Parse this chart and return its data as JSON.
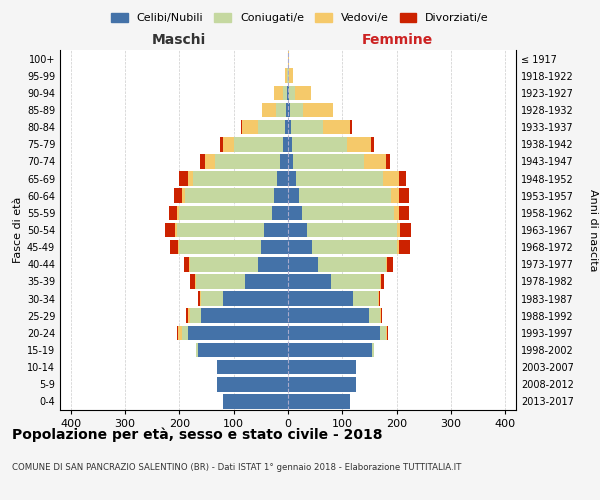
{
  "age_groups": [
    "0-4",
    "5-9",
    "10-14",
    "15-19",
    "20-24",
    "25-29",
    "30-34",
    "35-39",
    "40-44",
    "45-49",
    "50-54",
    "55-59",
    "60-64",
    "65-69",
    "70-74",
    "75-79",
    "80-84",
    "85-89",
    "90-94",
    "95-99",
    "100+"
  ],
  "birth_years": [
    "2013-2017",
    "2008-2012",
    "2003-2007",
    "1998-2002",
    "1993-1997",
    "1988-1992",
    "1983-1987",
    "1978-1982",
    "1973-1977",
    "1968-1972",
    "1963-1967",
    "1958-1962",
    "1953-1957",
    "1948-1952",
    "1943-1947",
    "1938-1942",
    "1933-1937",
    "1928-1932",
    "1923-1927",
    "1918-1922",
    "≤ 1917"
  ],
  "colors": {
    "celibe": "#4472a8",
    "coniugato": "#c5d8a0",
    "vedovo": "#f5c96a",
    "divorziato": "#cc2200"
  },
  "maschi": {
    "celibe": [
      120,
      130,
      130,
      165,
      185,
      160,
      120,
      80,
      55,
      50,
      45,
      30,
      25,
      20,
      15,
      10,
      5,
      3,
      2,
      0,
      0
    ],
    "coniugato": [
      0,
      0,
      0,
      5,
      10,
      20,
      40,
      90,
      125,
      150,
      160,
      170,
      165,
      155,
      120,
      90,
      50,
      20,
      8,
      2,
      0
    ],
    "vedovo": [
      0,
      0,
      0,
      0,
      8,
      5,
      2,
      2,
      2,
      2,
      3,
      4,
      5,
      10,
      18,
      20,
      30,
      25,
      15,
      3,
      0
    ],
    "divorziato": [
      0,
      0,
      0,
      0,
      1,
      2,
      3,
      8,
      10,
      15,
      18,
      15,
      15,
      15,
      10,
      5,
      1,
      0,
      0,
      0,
      0
    ]
  },
  "femmine": {
    "nubile": [
      115,
      125,
      125,
      155,
      170,
      150,
      120,
      80,
      55,
      45,
      35,
      25,
      20,
      15,
      10,
      8,
      5,
      3,
      2,
      0,
      0
    ],
    "coniugata": [
      0,
      0,
      0,
      3,
      10,
      20,
      45,
      90,
      125,
      155,
      165,
      170,
      170,
      160,
      130,
      100,
      60,
      25,
      10,
      2,
      0
    ],
    "vedova": [
      0,
      0,
      0,
      0,
      3,
      2,
      2,
      2,
      3,
      4,
      6,
      10,
      15,
      30,
      40,
      45,
      50,
      55,
      30,
      8,
      2
    ],
    "divorziata": [
      0,
      0,
      0,
      0,
      1,
      2,
      3,
      5,
      10,
      20,
      20,
      18,
      18,
      12,
      8,
      5,
      2,
      0,
      0,
      0,
      0
    ]
  },
  "xlim": 420,
  "title": "Popolazione per età, sesso e stato civile - 2018",
  "subtitle": "COMUNE DI SAN PANCRAZIO SALENTINO (BR) - Dati ISTAT 1° gennaio 2018 - Elaborazione TUTTITALIA.IT",
  "ylabel": "Fasce di età",
  "ylabel_right": "Anni di nascita",
  "xlabel_maschi": "Maschi",
  "xlabel_femmine": "Femmine",
  "bg_color": "#f5f5f5",
  "plot_bg": "#ffffff",
  "grid_color": "#cccccc"
}
